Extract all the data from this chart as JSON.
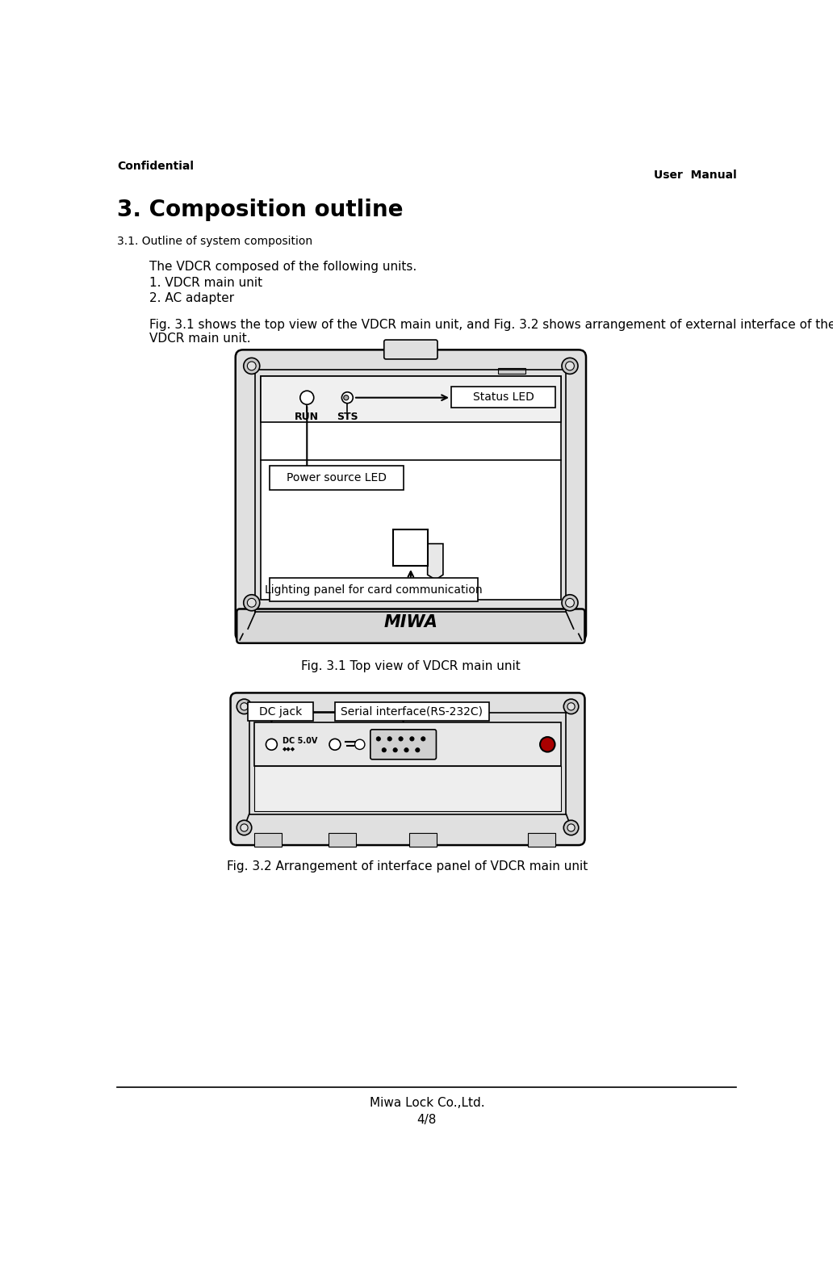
{
  "page_title_left": "Confidential",
  "page_title_right": "User  Manual",
  "section_title": "3. Composition outline",
  "subsection": "3.1. Outline of system composition",
  "para1_line1": "The VDCR composed of the following units.",
  "para1_line2": "1. VDCR main unit",
  "para1_line3": "2. AC adapter",
  "para2_line1": "Fig. 3.1 shows the top view of the VDCR main unit, and Fig. 3.2 shows arrangement of external interface of the",
  "para2_line2": "VDCR main unit.",
  "fig1_caption": "Fig. 3.1 Top view of VDCR main unit",
  "fig2_caption": "Fig. 3.2 Arrangement of interface panel of VDCR main unit",
  "label_status_led": "Status LED",
  "label_power_led": "Power source LED",
  "label_lighting": "Lighting panel for card communication",
  "label_dc_jack": "DC jack",
  "label_serial": "Serial interface(RS-232C)",
  "miwa_text": "MIWA",
  "footer_company": "Miwa Lock Co.,Ltd.",
  "footer_page": "4/8",
  "bg_color": "#ffffff",
  "text_color": "#000000",
  "line_color": "#000000",
  "box_color": "#ffffff",
  "device_outer_color": "#e8e8e8",
  "device_inner_color": "#f5f5f5"
}
